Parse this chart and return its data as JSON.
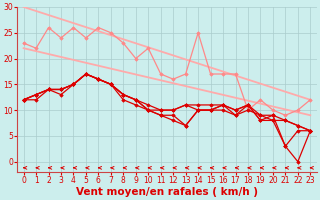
{
  "background_color": "#cceeed",
  "grid_color": "#aacccc",
  "xlabel": "Vent moyen/en rafales ( km/h )",
  "x_ticks": [
    0,
    1,
    2,
    3,
    4,
    5,
    6,
    7,
    8,
    9,
    10,
    11,
    12,
    13,
    14,
    15,
    16,
    17,
    18,
    19,
    20,
    21,
    22,
    23
  ],
  "ylim": [
    0,
    30
  ],
  "yticks": [
    0,
    5,
    10,
    15,
    20,
    25,
    30
  ],
  "lines": [
    {
      "color": "#ffaaaa",
      "lw": 1.3,
      "marker": null,
      "data_x": [
        0,
        23
      ],
      "data_y": [
        30,
        12
      ]
    },
    {
      "color": "#ffaaaa",
      "lw": 1.3,
      "marker": null,
      "data_x": [
        0,
        23
      ],
      "data_y": [
        22,
        9
      ]
    },
    {
      "color": "#ff8888",
      "lw": 0.9,
      "marker": "D",
      "markersize": 1.8,
      "data_x": [
        0,
        1,
        2,
        3,
        4,
        5,
        6,
        7,
        8,
        9,
        10,
        11,
        12,
        13,
        14,
        15,
        16,
        17,
        18,
        19,
        20,
        21,
        22,
        23
      ],
      "data_y": [
        23,
        22,
        26,
        24,
        26,
        24,
        26,
        25,
        23,
        20,
        22,
        17,
        16,
        17,
        25,
        17,
        17,
        17,
        10,
        12,
        10,
        9,
        10,
        12
      ]
    },
    {
      "color": "#dd0000",
      "lw": 0.9,
      "marker": "D",
      "markersize": 1.8,
      "data_x": [
        0,
        1,
        2,
        3,
        4,
        5,
        6,
        7,
        8,
        9,
        10,
        11,
        12,
        13,
        14,
        15,
        16,
        17,
        18,
        19,
        20,
        21,
        22,
        23
      ],
      "data_y": [
        12,
        13,
        14,
        14,
        15,
        17,
        16,
        15,
        13,
        12,
        10,
        9,
        8,
        7,
        10,
        10,
        11,
        10,
        11,
        8,
        8,
        3,
        6,
        6
      ]
    },
    {
      "color": "#dd0000",
      "lw": 0.9,
      "marker": "D",
      "markersize": 1.8,
      "data_x": [
        0,
        1,
        2,
        3,
        4,
        5,
        6,
        7,
        8,
        9,
        10,
        11,
        12,
        13,
        14,
        15,
        16,
        17,
        18,
        19,
        20,
        21,
        22,
        23
      ],
      "data_y": [
        12,
        13,
        14,
        14,
        15,
        17,
        16,
        15,
        13,
        12,
        10,
        9,
        9,
        7,
        10,
        10,
        11,
        9,
        11,
        8,
        9,
        3,
        0,
        6
      ]
    },
    {
      "color": "#dd0000",
      "lw": 0.9,
      "marker": "D",
      "markersize": 1.8,
      "data_x": [
        0,
        1,
        2,
        3,
        4,
        5,
        6,
        7,
        8,
        9,
        10,
        11,
        12,
        13,
        14,
        15,
        16,
        17,
        18,
        19,
        20,
        21,
        22,
        23
      ],
      "data_y": [
        12,
        13,
        14,
        14,
        15,
        17,
        16,
        15,
        13,
        12,
        11,
        10,
        10,
        11,
        11,
        11,
        11,
        10,
        11,
        9,
        9,
        8,
        7,
        6
      ]
    },
    {
      "color": "#dd0000",
      "lw": 0.9,
      "marker": "D",
      "markersize": 1.8,
      "data_x": [
        0,
        1,
        2,
        3,
        4,
        5,
        6,
        7,
        8,
        9,
        10,
        11,
        12,
        13,
        14,
        15,
        16,
        17,
        18,
        19,
        20,
        21,
        22,
        23
      ],
      "data_y": [
        12,
        12,
        14,
        13,
        15,
        17,
        16,
        15,
        12,
        11,
        10,
        10,
        10,
        11,
        10,
        10,
        10,
        9,
        10,
        9,
        8,
        8,
        7,
        6
      ]
    }
  ],
  "arrow_color": "#dd0000",
  "xlabel_color": "#dd0000",
  "xlabel_fontsize": 7.5,
  "tick_fontsize": 5.5,
  "tick_color": "#dd0000",
  "spine_color": "#cc4444"
}
